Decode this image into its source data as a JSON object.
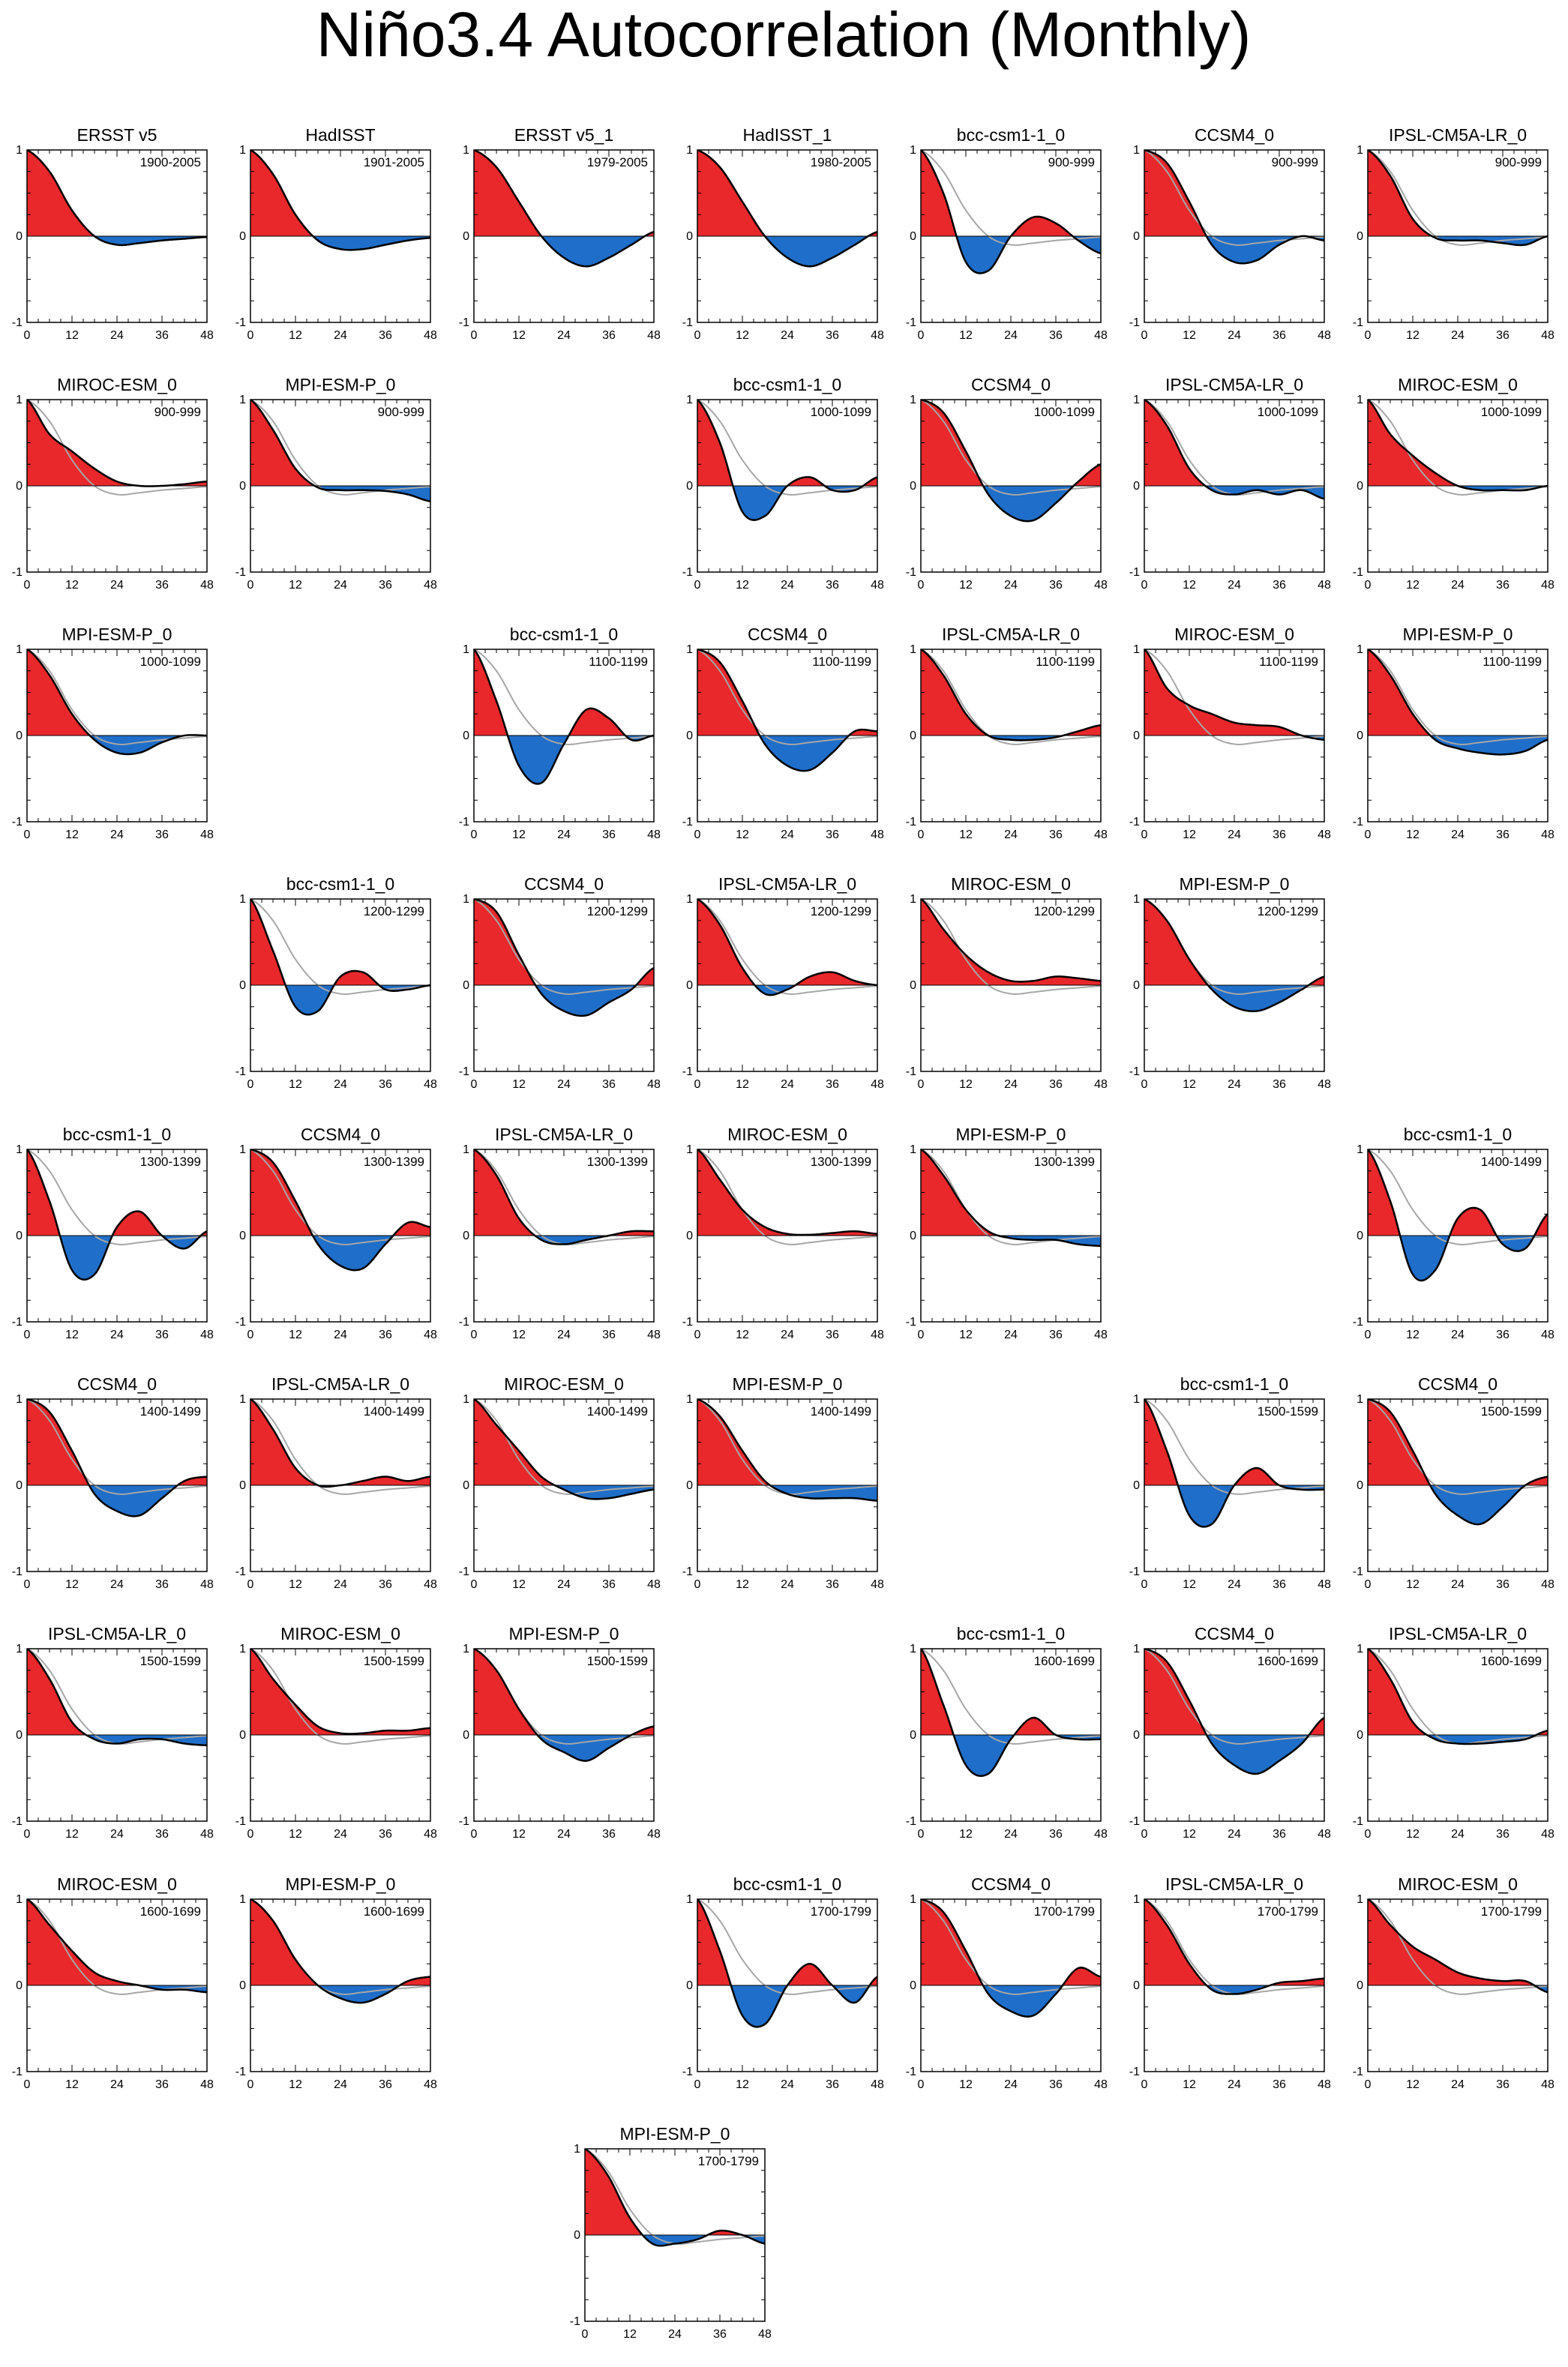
{
  "figure": {
    "title": "Niño3.4 Autocorrelation (Monthly)"
  },
  "style": {
    "positive_color": "#e8282b",
    "negative_color": "#1f6ec9",
    "line_color": "#000000",
    "reference_color": "#a6a6a6"
  },
  "chart_data": {
    "type": "area",
    "xlabel": "",
    "ylabel": "",
    "xlim": [
      0,
      48
    ],
    "ylim": [
      -1,
      1
    ],
    "xticks": [
      0,
      12,
      24,
      36,
      48
    ],
    "yticks": [
      -1,
      0,
      1
    ],
    "reference_series": "ERSST v5 (1900-2005), drawn as grey line on model panels",
    "panels": [
      {
        "title": "ERSST v5",
        "period": "1900-2005",
        "values": [
          1.0,
          0.75,
          0.3,
          0.0,
          -0.1,
          -0.08,
          -0.05,
          -0.03,
          -0.01
        ]
      },
      {
        "title": "HadISST",
        "period": "1901-2005",
        "values": [
          1.0,
          0.72,
          0.25,
          -0.05,
          -0.15,
          -0.15,
          -0.1,
          -0.05,
          -0.02
        ]
      },
      {
        "title": "ERSST v5_1",
        "period": "1979-2005",
        "values": [
          1.0,
          0.8,
          0.4,
          0.0,
          -0.25,
          -0.35,
          -0.25,
          -0.1,
          0.05
        ]
      },
      {
        "title": "HadISST_1",
        "period": "1980-2005",
        "values": [
          1.0,
          0.8,
          0.4,
          0.0,
          -0.25,
          -0.35,
          -0.25,
          -0.1,
          0.05
        ]
      },
      {
        "title": "bcc-csm1-1_0",
        "period": "900-999",
        "values": [
          1.0,
          0.5,
          -0.3,
          -0.4,
          0.0,
          0.22,
          0.15,
          -0.05,
          -0.2
        ]
      },
      {
        "title": "CCSM4_0",
        "period": "900-999",
        "values": [
          1.0,
          0.85,
          0.4,
          -0.1,
          -0.3,
          -0.28,
          -0.1,
          0.0,
          -0.05
        ]
      },
      {
        "title": "IPSL-CM5A-LR_0",
        "period": "900-999",
        "values": [
          1.0,
          0.7,
          0.2,
          -0.02,
          -0.05,
          -0.05,
          -0.08,
          -0.1,
          0.0
        ]
      },
      {
        "title": "MIROC-ESM_0",
        "period": "900-999",
        "values": [
          1.0,
          0.6,
          0.4,
          0.2,
          0.05,
          0.0,
          0.0,
          0.02,
          0.05
        ]
      },
      {
        "title": "MPI-ESM-P_0",
        "period": "900-999",
        "values": [
          1.0,
          0.65,
          0.2,
          -0.02,
          -0.05,
          -0.05,
          -0.06,
          -0.1,
          -0.18
        ]
      },
      {
        "title": "bcc-csm1-1_0",
        "period": "1000-1099",
        "values": [
          1.0,
          0.5,
          -0.3,
          -0.35,
          0.0,
          0.1,
          -0.05,
          -0.05,
          0.1
        ]
      },
      {
        "title": "CCSM4_0",
        "period": "1000-1099",
        "values": [
          1.0,
          0.85,
          0.4,
          -0.1,
          -0.35,
          -0.4,
          -0.2,
          0.05,
          0.25
        ]
      },
      {
        "title": "IPSL-CM5A-LR_0",
        "period": "1000-1099",
        "values": [
          1.0,
          0.7,
          0.2,
          -0.05,
          -0.1,
          -0.05,
          -0.1,
          -0.05,
          -0.15
        ]
      },
      {
        "title": "MIROC-ESM_0",
        "period": "1000-1099",
        "values": [
          1.0,
          0.6,
          0.35,
          0.15,
          0.0,
          -0.05,
          -0.05,
          -0.05,
          0.0
        ]
      },
      {
        "title": "MPI-ESM-P_0",
        "period": "1000-1099",
        "values": [
          1.0,
          0.7,
          0.25,
          -0.05,
          -0.2,
          -0.2,
          -0.08,
          0.0,
          0.0
        ]
      },
      {
        "title": "bcc-csm1-1_0",
        "period": "1100-1199",
        "values": [
          1.0,
          0.4,
          -0.35,
          -0.55,
          -0.1,
          0.3,
          0.2,
          -0.05,
          0.0
        ]
      },
      {
        "title": "CCSM4_0",
        "period": "1100-1199",
        "values": [
          1.0,
          0.85,
          0.4,
          -0.1,
          -0.35,
          -0.4,
          -0.2,
          0.05,
          0.05
        ]
      },
      {
        "title": "IPSL-CM5A-LR_0",
        "period": "1100-1199",
        "values": [
          1.0,
          0.7,
          0.25,
          0.0,
          -0.05,
          -0.05,
          -0.02,
          0.05,
          0.12
        ]
      },
      {
        "title": "MIROC-ESM_0",
        "period": "1100-1199",
        "values": [
          1.0,
          0.55,
          0.35,
          0.25,
          0.15,
          0.12,
          0.1,
          0.0,
          -0.05
        ]
      },
      {
        "title": "MPI-ESM-P_0",
        "period": "1100-1199",
        "values": [
          1.0,
          0.7,
          0.25,
          -0.05,
          -0.15,
          -0.2,
          -0.22,
          -0.18,
          -0.05
        ]
      },
      {
        "title": "bcc-csm1-1_0",
        "period": "1200-1299",
        "values": [
          1.0,
          0.4,
          -0.25,
          -0.3,
          0.1,
          0.15,
          -0.05,
          -0.05,
          0.0
        ]
      },
      {
        "title": "CCSM4_0",
        "period": "1200-1299",
        "values": [
          1.0,
          0.85,
          0.35,
          -0.1,
          -0.3,
          -0.35,
          -0.2,
          -0.05,
          0.2
        ]
      },
      {
        "title": "IPSL-CM5A-LR_0",
        "period": "1200-1299",
        "values": [
          1.0,
          0.7,
          0.2,
          -0.1,
          -0.05,
          0.1,
          0.15,
          0.05,
          0.0
        ]
      },
      {
        "title": "MIROC-ESM_0",
        "period": "1200-1299",
        "values": [
          1.0,
          0.65,
          0.35,
          0.15,
          0.05,
          0.05,
          0.1,
          0.08,
          0.05
        ]
      },
      {
        "title": "MPI-ESM-P_0",
        "period": "1200-1299",
        "values": [
          1.0,
          0.75,
          0.3,
          -0.05,
          -0.25,
          -0.3,
          -0.2,
          -0.05,
          0.1
        ]
      },
      {
        "title": "bcc-csm1-1_0",
        "period": "1300-1399",
        "values": [
          1.0,
          0.4,
          -0.4,
          -0.45,
          0.1,
          0.28,
          0.0,
          -0.15,
          0.05
        ]
      },
      {
        "title": "CCSM4_0",
        "period": "1300-1399",
        "values": [
          1.0,
          0.85,
          0.4,
          -0.1,
          -0.35,
          -0.38,
          -0.1,
          0.15,
          0.1
        ]
      },
      {
        "title": "IPSL-CM5A-LR_0",
        "period": "1300-1399",
        "values": [
          1.0,
          0.7,
          0.2,
          -0.05,
          -0.1,
          -0.05,
          0.0,
          0.05,
          0.05
        ]
      },
      {
        "title": "MIROC-ESM_0",
        "period": "1300-1399",
        "values": [
          1.0,
          0.65,
          0.3,
          0.1,
          0.02,
          0.01,
          0.03,
          0.05,
          0.02
        ]
      },
      {
        "title": "MPI-ESM-P_0",
        "period": "1300-1399",
        "values": [
          1.0,
          0.7,
          0.3,
          0.05,
          -0.03,
          -0.05,
          -0.05,
          -0.1,
          -0.12
        ]
      },
      {
        "title": "bcc-csm1-1_0",
        "period": "1400-1499",
        "values": [
          1.0,
          0.4,
          -0.45,
          -0.4,
          0.2,
          0.3,
          -0.1,
          -0.15,
          0.25
        ]
      },
      {
        "title": "CCSM4_0",
        "period": "1400-1499",
        "values": [
          1.0,
          0.85,
          0.4,
          -0.1,
          -0.3,
          -0.35,
          -0.15,
          0.05,
          0.1
        ]
      },
      {
        "title": "IPSL-CM5A-LR_0",
        "period": "1400-1499",
        "values": [
          1.0,
          0.65,
          0.2,
          0.0,
          0.0,
          0.05,
          0.1,
          0.05,
          0.1
        ]
      },
      {
        "title": "MIROC-ESM_0",
        "period": "1400-1499",
        "values": [
          1.0,
          0.7,
          0.4,
          0.1,
          -0.05,
          -0.15,
          -0.15,
          -0.1,
          -0.05
        ]
      },
      {
        "title": "MPI-ESM-P_0",
        "period": "1400-1499",
        "values": [
          1.0,
          0.8,
          0.4,
          0.05,
          -0.1,
          -0.15,
          -0.15,
          -0.15,
          -0.18
        ]
      },
      {
        "title": "bcc-csm1-1_0",
        "period": "1500-1599",
        "values": [
          1.0,
          0.4,
          -0.35,
          -0.45,
          0.0,
          0.2,
          0.0,
          -0.05,
          -0.05
        ]
      },
      {
        "title": "CCSM4_0",
        "period": "1500-1599",
        "values": [
          1.0,
          0.85,
          0.4,
          -0.1,
          -0.35,
          -0.45,
          -0.25,
          0.0,
          0.1
        ]
      },
      {
        "title": "IPSL-CM5A-LR_0",
        "period": "1500-1599",
        "values": [
          1.0,
          0.65,
          0.15,
          -0.05,
          -0.1,
          -0.05,
          -0.05,
          -0.1,
          -0.12
        ]
      },
      {
        "title": "MIROC-ESM_0",
        "period": "1500-1599",
        "values": [
          1.0,
          0.65,
          0.35,
          0.1,
          0.02,
          0.02,
          0.05,
          0.05,
          0.08
        ]
      },
      {
        "title": "MPI-ESM-P_0",
        "period": "1500-1599",
        "values": [
          1.0,
          0.75,
          0.3,
          -0.05,
          -0.2,
          -0.3,
          -0.15,
          0.0,
          0.1
        ]
      },
      {
        "title": "bcc-csm1-1_0",
        "period": "1600-1699",
        "values": [
          1.0,
          0.35,
          -0.35,
          -0.45,
          -0.05,
          0.2,
          0.0,
          -0.05,
          -0.05
        ]
      },
      {
        "title": "CCSM4_0",
        "period": "1600-1699",
        "values": [
          1.0,
          0.85,
          0.4,
          -0.1,
          -0.35,
          -0.45,
          -0.3,
          -0.1,
          0.2
        ]
      },
      {
        "title": "IPSL-CM5A-LR_0",
        "period": "1600-1699",
        "values": [
          1.0,
          0.65,
          0.15,
          -0.05,
          -0.1,
          -0.1,
          -0.08,
          -0.05,
          0.05
        ]
      },
      {
        "title": "MIROC-ESM_0",
        "period": "1600-1699",
        "values": [
          1.0,
          0.7,
          0.4,
          0.15,
          0.05,
          0.0,
          -0.05,
          -0.05,
          -0.08
        ]
      },
      {
        "title": "MPI-ESM-P_0",
        "period": "1600-1699",
        "values": [
          1.0,
          0.75,
          0.3,
          0.0,
          -0.15,
          -0.2,
          -0.1,
          0.05,
          0.1
        ]
      },
      {
        "title": "bcc-csm1-1_0",
        "period": "1700-1799",
        "values": [
          1.0,
          0.4,
          -0.35,
          -0.45,
          0.0,
          0.25,
          0.0,
          -0.2,
          0.1
        ]
      },
      {
        "title": "CCSM4_0",
        "period": "1700-1799",
        "values": [
          1.0,
          0.85,
          0.4,
          -0.1,
          -0.3,
          -0.35,
          -0.1,
          0.2,
          0.1
        ]
      },
      {
        "title": "IPSL-CM5A-LR_0",
        "period": "1700-1799",
        "values": [
          1.0,
          0.7,
          0.25,
          -0.05,
          -0.1,
          -0.05,
          0.03,
          0.05,
          0.08
        ]
      },
      {
        "title": "MIROC-ESM_0",
        "period": "1700-1799",
        "values": [
          1.0,
          0.7,
          0.45,
          0.3,
          0.15,
          0.08,
          0.05,
          0.05,
          -0.08
        ]
      },
      {
        "title": "MPI-ESM-P_0",
        "period": "1700-1799",
        "values": [
          1.0,
          0.7,
          0.2,
          -0.1,
          -0.1,
          -0.05,
          0.05,
          0.0,
          -0.1
        ]
      }
    ]
  }
}
